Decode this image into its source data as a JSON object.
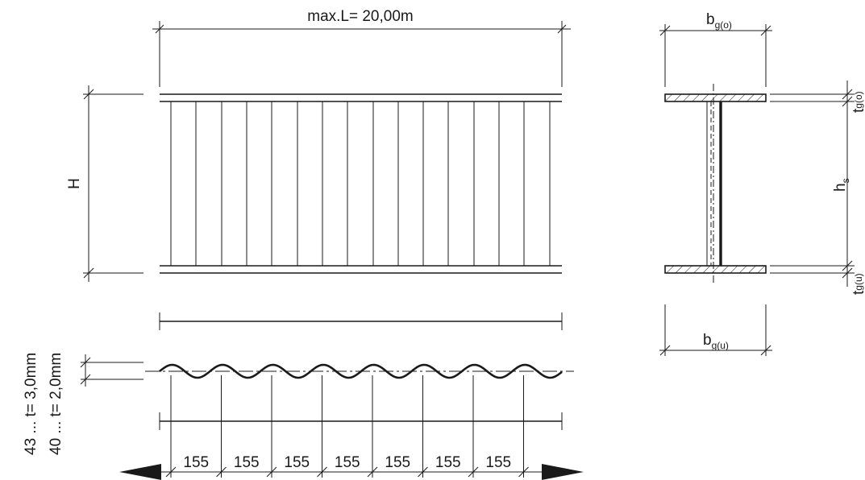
{
  "elevation": {
    "span_label": "max.L= 20,00m",
    "height_label": "H"
  },
  "wave": {
    "dim_a": "43 ... t= 3,0mm",
    "dim_b": "40 ... t= 2,0mm",
    "pitch_label": "155",
    "pitch_count": 7
  },
  "section": {
    "top_flange_label_main": "b",
    "top_flange_label_sub": "g(o)",
    "bottom_flange_label_main": "b",
    "bottom_flange_label_sub": "g(u)",
    "web_height_label_main": "h",
    "web_height_label_sub": "s",
    "top_thickness_main": "t",
    "top_thickness_sub": "g(o)",
    "bottom_thickness_main": "t",
    "bottom_thickness_sub": "g(u)"
  }
}
